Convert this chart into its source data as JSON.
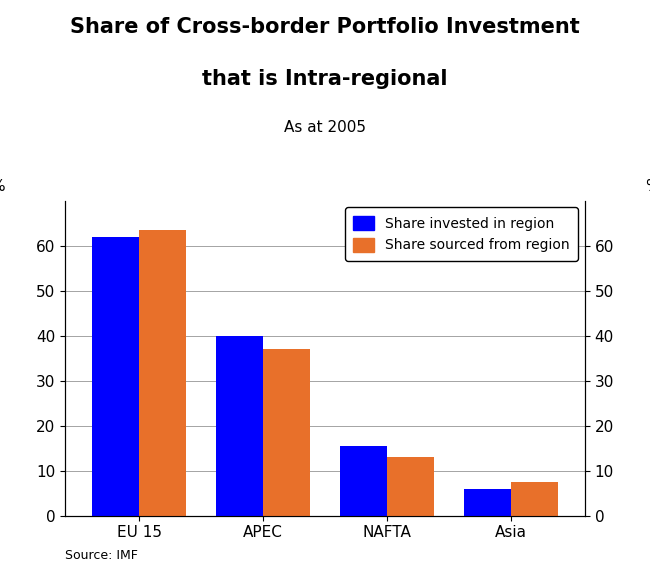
{
  "title_line1": "Share of Cross-border Portfolio Investment",
  "title_line2": "that is Intra-regional",
  "subtitle": "As at 2005",
  "categories": [
    "EU 15",
    "APEC",
    "NAFTA",
    "Asia"
  ],
  "share_invested": [
    62,
    40,
    15.5,
    6
  ],
  "share_sourced": [
    63.5,
    37,
    13,
    7.5
  ],
  "bar_color_invested": "#0000FF",
  "bar_color_sourced": "#E8702A",
  "ylim": [
    0,
    70
  ],
  "yticks": [
    0,
    10,
    20,
    30,
    40,
    50,
    60
  ],
  "ylabel_left": "%",
  "ylabel_right": "%",
  "source": "Source: IMF",
  "legend_invested": "Share invested in region",
  "legend_sourced": "Share sourced from region",
  "bar_width": 0.38,
  "background_color": "#ffffff",
  "title_fontsize": 15,
  "subtitle_fontsize": 11,
  "tick_fontsize": 11,
  "legend_fontsize": 10,
  "source_fontsize": 9
}
